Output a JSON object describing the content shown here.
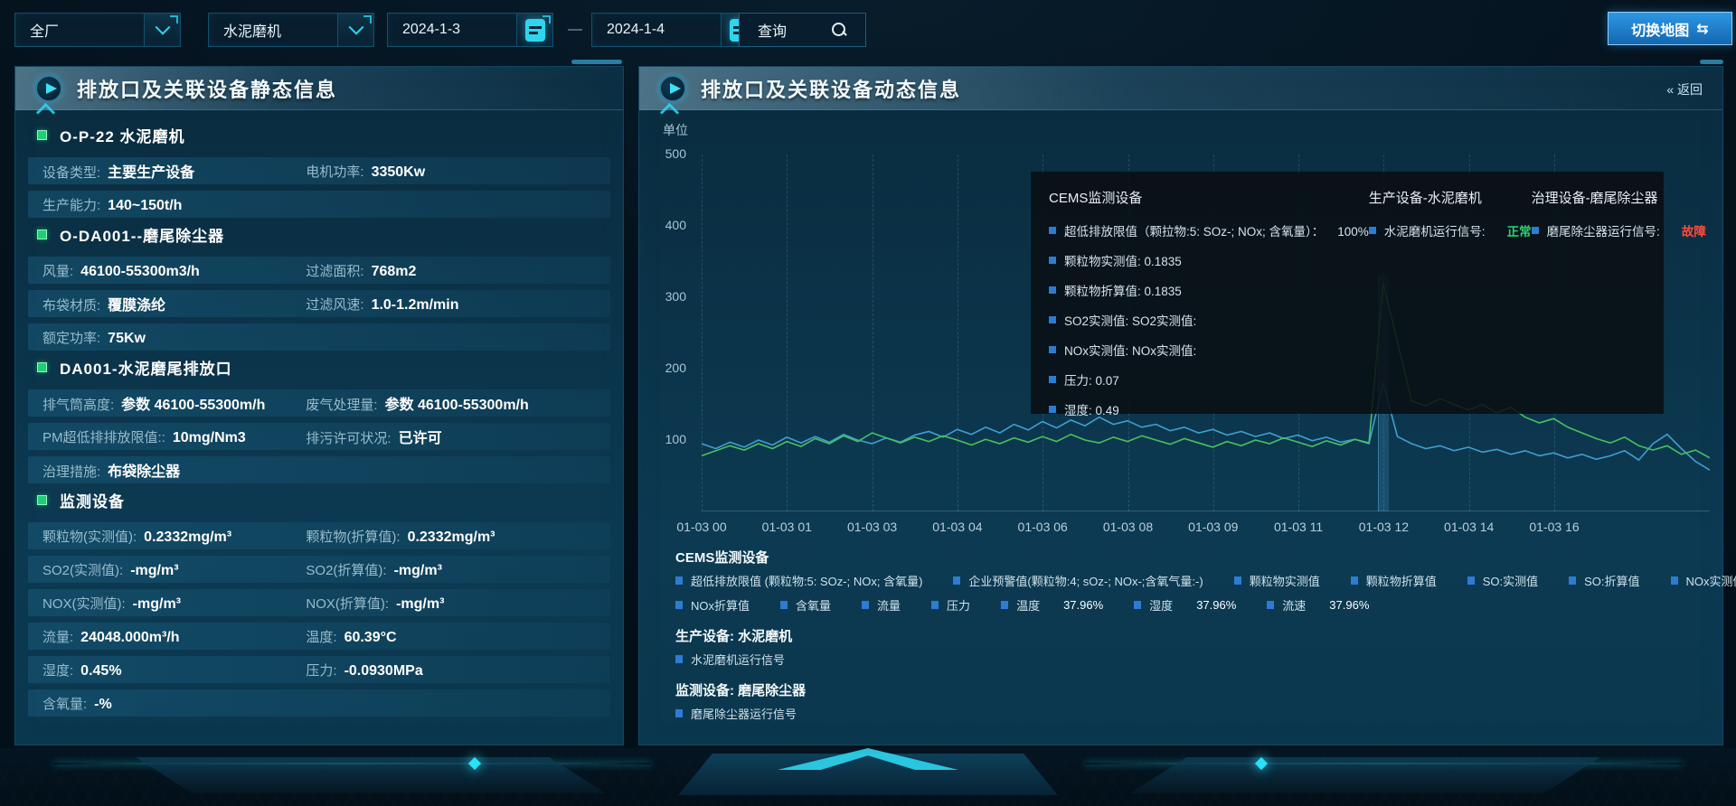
{
  "colors": {
    "accent": "#2fd5ef",
    "panel_border": "#12475f",
    "status_ok": "#2ed573",
    "status_fault": "#ff4b3a",
    "series_blue": "#3f9fd0",
    "series_green": "#48c161",
    "legend_bullet": "#2d7cd4",
    "section_bullet": "#1ed075",
    "map_button_blue": "#1f7fd0"
  },
  "topbar": {
    "select_plant": "全厂",
    "select_device": "水泥磨机",
    "date_start": "2024-1-3",
    "date_separator": "—",
    "date_end": "2024-1-4",
    "query_label": "查询",
    "switch_map_label": "切换地图",
    "switch_icon": "⇆"
  },
  "left_panel": {
    "title": "排放口及关联设备静态信息",
    "sections": [
      {
        "heading": "O-P-22 水泥磨机",
        "rows": [
          [
            {
              "label": "设备类型:",
              "value": "主要生产设备"
            },
            {
              "label": "电机功率:",
              "value": "3350Kw"
            }
          ],
          [
            {
              "label": "生产能力:",
              "value": "140~150t/h"
            }
          ]
        ]
      },
      {
        "heading": "O-DA001--磨尾除尘器",
        "rows": [
          [
            {
              "label": "风量:",
              "value": "46100-55300m3/h"
            },
            {
              "label": "过滤面积:",
              "value": "768m2"
            }
          ],
          [
            {
              "label": "布袋材质:",
              "value": "覆膜涤纶"
            },
            {
              "label": "过滤风速:",
              "value": "1.0-1.2m/min"
            }
          ],
          [
            {
              "label": "额定功率:",
              "value": "75Kw"
            }
          ]
        ]
      },
      {
        "heading": "DA001-水泥磨尾排放口",
        "rows": [
          [
            {
              "label": "排气筒高度:",
              "value": "参数 46100-55300m/h"
            },
            {
              "label": "废气处理量:",
              "value": "参数 46100-55300m/h"
            }
          ],
          [
            {
              "label": "PM超低排排放限值::",
              "value": "10mg/Nm3"
            },
            {
              "label": "排污许可状况:",
              "value": "已许可"
            }
          ],
          [
            {
              "label": "治理措施:",
              "value": "布袋除尘器"
            }
          ]
        ]
      },
      {
        "heading": "监测设备",
        "rows": [
          [
            {
              "label": "颗粒物(实测值):",
              "value": "0.2332mg/m³"
            },
            {
              "label": "颗粒物(折算值):",
              "value": "0.2332mg/m³"
            }
          ],
          [
            {
              "label": "SO2(实测值):",
              "value": "-mg/m³"
            },
            {
              "label": "SO2(折算值):",
              "value": "-mg/m³"
            }
          ],
          [
            {
              "label": "NOX(实测值):",
              "value": "-mg/m³"
            },
            {
              "label": "NOX(折算值):",
              "value": "-mg/m³"
            }
          ],
          [
            {
              "label": "流量:",
              "value": "24048.000m³/h"
            },
            {
              "label": "温度:",
              "value": "60.39°C"
            }
          ],
          [
            {
              "label": "湿度:",
              "value": "0.45%"
            },
            {
              "label": "压力:",
              "value": "-0.0930MPa"
            }
          ],
          [
            {
              "label": "含氧量:",
              "value": "-%"
            }
          ]
        ]
      }
    ]
  },
  "right_panel": {
    "title": "排放口及关联设备动态信息",
    "back_label": "« 返回",
    "tooltip": {
      "columns": [
        {
          "title": "CEMS监测设备",
          "items": [
            "超低排放限值（颗拉物:5: SOz-; NOx; 含氧量）：    100%",
            "颗粒物实测值: 0.1835",
            "颗粒物折算值: 0.1835",
            "SO2实测值: SO2实测值:",
            "NOx实测值: NOx实测值:",
            "压力: 0.07",
            "湿度: 0.49"
          ]
        },
        {
          "title": "生产设备-水泥磨机",
          "items": [
            {
              "label": "水泥磨机运行信号:",
              "status": "正常",
              "state": "ok"
            }
          ]
        },
        {
          "title": "治理设备-磨尾除尘器",
          "items": [
            {
              "label": "磨尾除尘器运行信号:",
              "status": "故障",
              "state": "fault"
            }
          ]
        }
      ]
    },
    "legend": {
      "groups": [
        {
          "title": "CEMS监测设备",
          "rows": [
            [
              {
                "label": "超低排放限值 (颗粒物:5: SOz-; NOx; 含氧量)"
              },
              {
                "label": "企业预警值(颗粒物:4; sOz-; NOx-;含氧气量:-)"
              },
              {
                "label": "颗粒物实测值"
              },
              {
                "label": "颗粒物折算值"
              },
              {
                "label": "SO:实测值"
              },
              {
                "label": "SO:折算值"
              },
              {
                "label": "NOx实测值"
              }
            ],
            [
              {
                "label": "NOx折算值"
              },
              {
                "label": "含氧量"
              },
              {
                "label": "流量"
              },
              {
                "label": "压力"
              },
              {
                "label": "温度",
                "value": "37.96%"
              },
              {
                "label": "湿度",
                "value": "37.96%"
              },
              {
                "label": "流速",
                "value": "37.96%"
              }
            ]
          ]
        },
        {
          "title": "生产设备: 水泥磨机",
          "rows": [
            [
              {
                "label": "水泥磨机运行信号"
              }
            ]
          ]
        },
        {
          "title": "监测设备: 磨尾除尘器",
          "rows": [
            [
              {
                "label": "磨尾除尘器运行信号"
              }
            ]
          ]
        }
      ]
    }
  },
  "chart_data": {
    "type": "line",
    "unit_label": "单位",
    "ylim": [
      0,
      500
    ],
    "y_ticks": [
      500,
      400,
      300,
      200,
      100
    ],
    "x_tick_labels": [
      "01-03 00",
      "01-03 01",
      "01-03 03",
      "01-03 04",
      "01-03 06",
      "01-03 08",
      "01-03 09",
      "01-03 11",
      "01-03 12",
      "01-03 14",
      "01-03 16"
    ],
    "grid": "vertical-dashed",
    "legend_position": "bottom",
    "hover_band": {
      "at_label": "01-03 12",
      "top_value": 330
    },
    "series": [
      {
        "name": "颗粒物实测值",
        "color": "#3f9fd0",
        "values": [
          95,
          88,
          97,
          90,
          100,
          93,
          104,
          96,
          105,
          97,
          108,
          100,
          95,
          103,
          97,
          107,
          112,
          104,
          115,
          108,
          118,
          110,
          122,
          114,
          126,
          117,
          128,
          120,
          132,
          122,
          127,
          118,
          122,
          113,
          118,
          110,
          115,
          107,
          112,
          105,
          110,
          102,
          107,
          99,
          104,
          97,
          101,
          95,
          180,
          105,
          95,
          88,
          92,
          85,
          90,
          83,
          87,
          80,
          85,
          78,
          82,
          75,
          80,
          73,
          78,
          85,
          72,
          95,
          108,
          88,
          70,
          58
        ]
      },
      {
        "name": "颗粒物折算值",
        "color": "#48c161",
        "values": [
          78,
          85,
          92,
          86,
          95,
          88,
          98,
          91,
          102,
          95,
          106,
          98,
          110,
          103,
          96,
          104,
          98,
          106,
          100,
          93,
          101,
          95,
          103,
          97,
          105,
          98,
          108,
          100,
          96,
          104,
          98,
          106,
          100,
          94,
          102,
          96,
          90,
          98,
          92,
          100,
          95,
          103,
          97,
          91,
          99,
          93,
          101,
          96,
          320,
          238,
          155,
          148,
          158,
          150,
          142,
          150,
          138,
          146,
          132,
          124,
          130,
          118,
          110,
          102,
          96,
          104,
          92,
          86,
          92,
          80,
          86,
          75
        ]
      }
    ]
  }
}
